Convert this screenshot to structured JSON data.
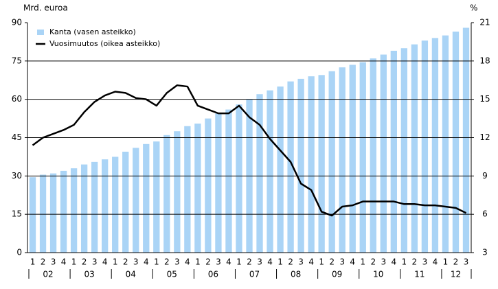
{
  "chart_data": {
    "type": "bar_line",
    "y_axis_label": "Mrd. euroa",
    "y2_axis_label": "%",
    "categories": [
      "1",
      "2",
      "3",
      "4",
      "1",
      "2",
      "3",
      "4",
      "1",
      "2",
      "3",
      "4",
      "1",
      "2",
      "3",
      "4",
      "1",
      "2",
      "3",
      "4",
      "1",
      "2",
      "3",
      "4",
      "1",
      "2",
      "3",
      "4",
      "1",
      "2",
      "3",
      "4",
      "1",
      "2",
      "3",
      "4",
      "1",
      "2",
      "3",
      "4",
      "1",
      "2",
      "3"
    ],
    "year_labels": [
      "02",
      "03",
      "04",
      "05",
      "06",
      "07",
      "08",
      "09",
      "10",
      "11",
      "12"
    ],
    "series": [
      {
        "name": "Kanta (vasen asteikko)",
        "color": "#aad4f6",
        "kind": "bar",
        "values": [
          29.5,
          30.5,
          31,
          32,
          33,
          34.5,
          35.5,
          36.5,
          37.5,
          39.5,
          41,
          42.5,
          43.5,
          46,
          47.5,
          49.5,
          50.5,
          52.5,
          54.5,
          56,
          58,
          60,
          62,
          63.5,
          65,
          67,
          68,
          69,
          69.5,
          71,
          72.5,
          73.5,
          74.5,
          76,
          77.5,
          79,
          80,
          81.5,
          83,
          84,
          85,
          86.5,
          88
        ]
      },
      {
        "name": "Vuosimuutos (oikea asteikko)",
        "color": "#000000",
        "kind": "line",
        "axis": "y2",
        "values": [
          11.4,
          12.0,
          12.3,
          12.6,
          13.0,
          14.0,
          14.8,
          15.3,
          15.6,
          15.5,
          15.1,
          15.0,
          14.5,
          15.5,
          16.1,
          16.0,
          14.5,
          14.2,
          13.9,
          13.9,
          14.5,
          13.6,
          13.0,
          11.9,
          11.0,
          10.1,
          8.4,
          7.9,
          6.2,
          5.9,
          6.6,
          6.7,
          7.0,
          7.0,
          7.0,
          7.0,
          6.8,
          6.8,
          6.7,
          6.7,
          6.6,
          6.5,
          6.1
        ]
      }
    ],
    "ylim": [
      0,
      90
    ],
    "yticks": [
      0,
      15,
      30,
      45,
      60,
      75,
      90
    ],
    "y2lim": [
      3,
      21
    ],
    "y2ticks": [
      3,
      6,
      9,
      12,
      15,
      18,
      21
    ],
    "grid": true,
    "legend": "top-left"
  }
}
